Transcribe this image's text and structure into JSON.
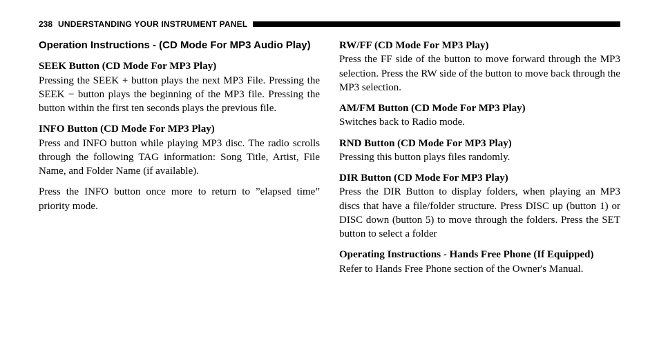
{
  "header": {
    "page_number": "238",
    "title": "UNDERSTANDING YOUR INSTRUMENT PANEL"
  },
  "left_column": {
    "main_heading": "Operation Instructions - (CD Mode For MP3 Audio Play)",
    "sections": [
      {
        "heading": "SEEK Button (CD Mode For MP3 Play)",
        "body": "Pressing the SEEK + button plays the next MP3 File. Pressing the SEEK − button plays the beginning of the MP3 file. Pressing the button within the first ten seconds plays the previous file."
      },
      {
        "heading": "INFO Button (CD Mode For MP3 Play)",
        "body": "Press and INFO button while playing MP3 disc. The radio scrolls through the following TAG information: Song Title, Artist, File Name, and Folder Name (if available)."
      },
      {
        "heading": "",
        "body": "Press the INFO button once more to return to ”elapsed time” priority mode."
      }
    ]
  },
  "right_column": {
    "sections": [
      {
        "heading": "RW/FF (CD Mode For MP3 Play)",
        "body": "Press the FF side of the button to move forward through the MP3 selection. Press the RW side of the button to move back through the MP3 selection."
      },
      {
        "heading": "AM/FM Button (CD Mode For MP3 Play)",
        "body": "Switches back to Radio mode."
      },
      {
        "heading": "RND Button (CD Mode For MP3 Play)",
        "body": "Pressing this button plays files randomly."
      },
      {
        "heading": "DIR Button (CD Mode For MP3 Play)",
        "body": "Press the DIR Button to display folders, when playing an MP3 discs that have a file/folder structure. Press DISC up (button 1) or DISC down (button 5) to move through the folders. Press the SET button to select a folder"
      },
      {
        "heading": "Operating Instructions - Hands Free Phone (If Equipped)",
        "body": "Refer to Hands Free Phone section of the Owner's Manual."
      }
    ]
  }
}
